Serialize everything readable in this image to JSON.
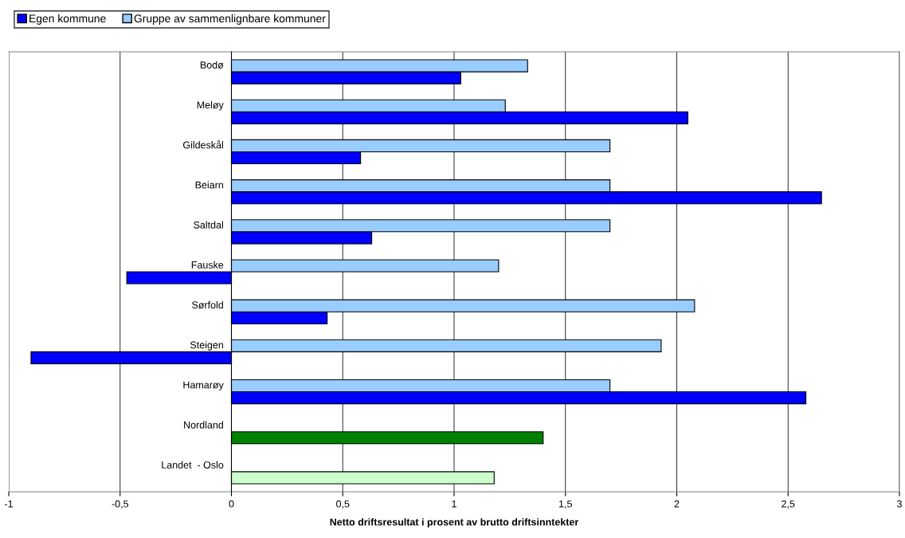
{
  "chart_data": {
    "type": "bar",
    "orientation": "horizontal",
    "xlabel": "Netto driftsresultat i prosent av brutto driftsinntekter",
    "categories": [
      "Bodø",
      "Meløy",
      "Gildeskål",
      "Beiarn",
      "Saltdal",
      "Fauske",
      "Sørfold",
      "Steigen",
      "Hamarøy",
      "Nordland",
      "Landet  - Oslo"
    ],
    "series": [
      {
        "name": "Egen kommune",
        "color": "#0000ff",
        "colors": [
          "#0000ff",
          "#0000ff",
          "#0000ff",
          "#0000ff",
          "#0000ff",
          "#0000ff",
          "#0000ff",
          "#0000ff",
          "#0000ff",
          "#008000",
          "#ccffcc"
        ],
        "values": [
          1.03,
          2.05,
          0.58,
          2.65,
          0.63,
          -0.47,
          0.43,
          -0.9,
          2.58,
          1.4,
          1.18
        ]
      },
      {
        "name": "Gruppe av sammenlignbare kommuner",
        "color": "#99ccff",
        "values": [
          1.33,
          1.23,
          1.7,
          1.7,
          1.7,
          1.2,
          2.08,
          1.93,
          1.7,
          null,
          null
        ]
      }
    ],
    "xlim": [
      -1,
      3
    ],
    "xticks": [
      {
        "value": -1,
        "label": "-1"
      },
      {
        "value": -0.5,
        "label": "-0,5"
      },
      {
        "value": 0,
        "label": "0"
      },
      {
        "value": 0.5,
        "label": "0,5"
      },
      {
        "value": 1,
        "label": "1"
      },
      {
        "value": 1.5,
        "label": "1,5"
      },
      {
        "value": 2,
        "label": "2"
      },
      {
        "value": 2.5,
        "label": "2,5"
      },
      {
        "value": 3,
        "label": "3"
      }
    ],
    "grid": "x",
    "legend": "top left"
  }
}
